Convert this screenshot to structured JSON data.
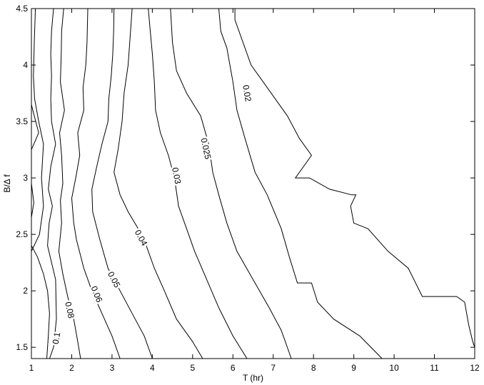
{
  "chart_data": {
    "type": "contour",
    "title": "",
    "xlabel": "T (hr)",
    "ylabel": "B/Δ f",
    "xlim": [
      1,
      12
    ],
    "ylim": [
      1.4,
      4.5
    ],
    "xticks": [
      1,
      2,
      3,
      4,
      5,
      6,
      7,
      8,
      9,
      10,
      11,
      12
    ],
    "yticks": [
      1.5,
      2,
      2.5,
      3,
      3.5,
      4,
      4.5
    ],
    "grid": false,
    "line_color": "#000000",
    "contours": [
      {
        "level": "0.1",
        "points": [
          [
            1.45,
            1.4
          ],
          [
            1.55,
            1.5
          ],
          [
            1.62,
            1.75
          ],
          [
            1.6,
            2.1
          ],
          [
            1.5,
            2.25
          ],
          [
            1.4,
            2.4
          ],
          [
            1.44,
            2.6
          ],
          [
            1.52,
            2.75
          ],
          [
            1.42,
            2.9
          ],
          [
            1.48,
            3.1
          ],
          [
            1.6,
            3.3
          ],
          [
            1.5,
            3.5
          ],
          [
            1.48,
            3.7
          ],
          [
            1.5,
            3.9
          ],
          [
            1.48,
            4.1
          ],
          [
            1.5,
            4.3
          ],
          [
            1.55,
            4.5
          ]
        ],
        "label_at": [
          1.62,
          1.58
        ]
      },
      {
        "level": "",
        "points": [
          [
            1,
            2.4
          ],
          [
            1.15,
            2.3
          ],
          [
            1.3,
            2.15
          ],
          [
            1.4,
            2.0
          ],
          [
            1.45,
            1.8
          ],
          [
            1.42,
            1.6
          ],
          [
            1.38,
            1.4
          ]
        ]
      },
      {
        "level": "",
        "points": [
          [
            1,
            2.65
          ],
          [
            1.06,
            2.78
          ],
          [
            1.0,
            2.95
          ]
        ]
      },
      {
        "level": "",
        "points": [
          [
            1,
            3.25
          ],
          [
            1.18,
            3.4
          ],
          [
            1.07,
            3.55
          ],
          [
            1,
            3.65
          ]
        ]
      },
      {
        "level": "",
        "points": [
          [
            1.1,
            4.5
          ],
          [
            1.07,
            4.2
          ],
          [
            1.05,
            3.9
          ],
          [
            1.08,
            3.7
          ],
          [
            1.18,
            3.5
          ],
          [
            1.3,
            3.3
          ],
          [
            1.25,
            3.0
          ],
          [
            1.3,
            2.75
          ],
          [
            1.2,
            2.5
          ],
          [
            1.0,
            2.35
          ]
        ]
      },
      {
        "level": "0.08",
        "points": [
          [
            2.22,
            1.4
          ],
          [
            2.15,
            1.55
          ],
          [
            2.05,
            1.75
          ],
          [
            1.9,
            1.95
          ],
          [
            1.78,
            2.15
          ],
          [
            1.68,
            2.35
          ],
          [
            1.75,
            2.6
          ],
          [
            1.72,
            2.8
          ],
          [
            1.78,
            2.95
          ],
          [
            1.75,
            3.2
          ],
          [
            1.7,
            3.4
          ],
          [
            1.82,
            3.6
          ],
          [
            1.72,
            3.85
          ],
          [
            1.74,
            4.1
          ],
          [
            1.75,
            4.3
          ],
          [
            1.8,
            4.5
          ]
        ],
        "label_at": [
          1.95,
          1.83
        ]
      },
      {
        "level": "0.06",
        "points": [
          [
            3.2,
            1.4
          ],
          [
            3.0,
            1.6
          ],
          [
            2.75,
            1.8
          ],
          [
            2.5,
            2.0
          ],
          [
            2.3,
            2.2
          ],
          [
            2.12,
            2.45
          ],
          [
            2.05,
            2.6
          ],
          [
            2.0,
            2.82
          ],
          [
            2.1,
            3.0
          ],
          [
            2.2,
            3.2
          ],
          [
            2.15,
            3.4
          ],
          [
            2.3,
            3.6
          ],
          [
            2.28,
            3.8
          ],
          [
            2.35,
            4.0
          ],
          [
            2.38,
            4.2
          ],
          [
            2.4,
            4.5
          ]
        ],
        "label_at": [
          2.62,
          1.97
        ]
      },
      {
        "level": "0.05",
        "points": [
          [
            4.0,
            1.4
          ],
          [
            3.8,
            1.6
          ],
          [
            3.5,
            1.8
          ],
          [
            3.2,
            2.0
          ],
          [
            2.9,
            2.2
          ],
          [
            2.7,
            2.45
          ],
          [
            2.52,
            2.7
          ],
          [
            2.5,
            2.9
          ],
          [
            2.62,
            3.1
          ],
          [
            2.75,
            3.3
          ],
          [
            2.9,
            3.5
          ],
          [
            2.92,
            3.7
          ],
          [
            2.98,
            3.9
          ],
          [
            3.02,
            4.1
          ],
          [
            3.04,
            4.3
          ],
          [
            3.05,
            4.5
          ]
        ],
        "label_at": [
          3.05,
          2.1
        ]
      },
      {
        "level": "0.04",
        "points": [
          [
            5.25,
            1.4
          ],
          [
            5.0,
            1.55
          ],
          [
            4.6,
            1.75
          ],
          [
            4.3,
            2.0
          ],
          [
            4.05,
            2.2
          ],
          [
            3.85,
            2.4
          ],
          [
            3.65,
            2.55
          ],
          [
            3.4,
            2.7
          ],
          [
            3.2,
            2.85
          ],
          [
            3.05,
            3.05
          ],
          [
            3.15,
            3.25
          ],
          [
            3.25,
            3.5
          ],
          [
            3.3,
            3.75
          ],
          [
            3.4,
            4.0
          ],
          [
            3.45,
            4.25
          ],
          [
            3.5,
            4.5
          ]
        ],
        "label_at": [
          3.72,
          2.47
        ]
      },
      {
        "level": "0.03",
        "points": [
          [
            6.35,
            1.4
          ],
          [
            6.0,
            1.6
          ],
          [
            5.65,
            1.85
          ],
          [
            5.35,
            2.1
          ],
          [
            5.05,
            2.35
          ],
          [
            4.85,
            2.55
          ],
          [
            4.65,
            2.75
          ],
          [
            4.55,
            3.0
          ],
          [
            4.4,
            3.2
          ],
          [
            4.2,
            3.4
          ],
          [
            4.08,
            3.6
          ],
          [
            4.05,
            3.85
          ],
          [
            4.0,
            4.1
          ],
          [
            3.95,
            4.3
          ],
          [
            3.9,
            4.5
          ]
        ],
        "label_at": [
          4.6,
          3.02
        ]
      },
      {
        "level": "0.025",
        "points": [
          [
            7.45,
            1.4
          ],
          [
            7.2,
            1.65
          ],
          [
            6.9,
            1.85
          ],
          [
            6.5,
            2.1
          ],
          [
            6.1,
            2.35
          ],
          [
            5.85,
            2.6
          ],
          [
            5.65,
            2.85
          ],
          [
            5.5,
            3.05
          ],
          [
            5.4,
            3.3
          ],
          [
            5.2,
            3.55
          ],
          [
            4.85,
            3.75
          ],
          [
            4.6,
            3.95
          ],
          [
            4.5,
            4.2
          ],
          [
            4.45,
            4.5
          ]
        ],
        "label_at": [
          5.33,
          3.26
        ]
      },
      {
        "level": "0.02",
        "points": [
          [
            9.7,
            1.4
          ],
          [
            9.15,
            1.6
          ],
          [
            8.5,
            1.75
          ],
          [
            8.1,
            1.9
          ],
          [
            7.95,
            2.07
          ],
          [
            7.6,
            2.07
          ],
          [
            7.4,
            2.3
          ],
          [
            7.2,
            2.55
          ],
          [
            6.85,
            2.85
          ],
          [
            6.55,
            3.05
          ],
          [
            6.3,
            3.35
          ],
          [
            6.1,
            3.6
          ],
          [
            6.0,
            3.85
          ],
          [
            5.85,
            4.15
          ],
          [
            5.7,
            4.3
          ],
          [
            5.65,
            4.5
          ]
        ],
        "label_at": [
          6.35,
          3.75
        ]
      },
      {
        "level": "",
        "points": [
          [
            12,
            1.5
          ],
          [
            11.95,
            1.55
          ],
          [
            11.85,
            1.7
          ],
          [
            11.75,
            1.9
          ],
          [
            11.55,
            1.95
          ],
          [
            10.7,
            1.95
          ],
          [
            10.35,
            2.2
          ],
          [
            9.85,
            2.35
          ],
          [
            9.35,
            2.55
          ],
          [
            9.0,
            2.6
          ],
          [
            8.92,
            2.75
          ],
          [
            9.05,
            2.85
          ],
          [
            8.95,
            2.85
          ],
          [
            8.4,
            2.9
          ],
          [
            7.9,
            3.0
          ],
          [
            7.55,
            3.0
          ],
          [
            7.95,
            3.2
          ],
          [
            7.65,
            3.35
          ],
          [
            7.35,
            3.55
          ],
          [
            6.85,
            3.8
          ],
          [
            6.45,
            4.0
          ],
          [
            6.25,
            4.2
          ],
          [
            6.05,
            4.4
          ],
          [
            6.05,
            4.5
          ]
        ]
      }
    ]
  }
}
